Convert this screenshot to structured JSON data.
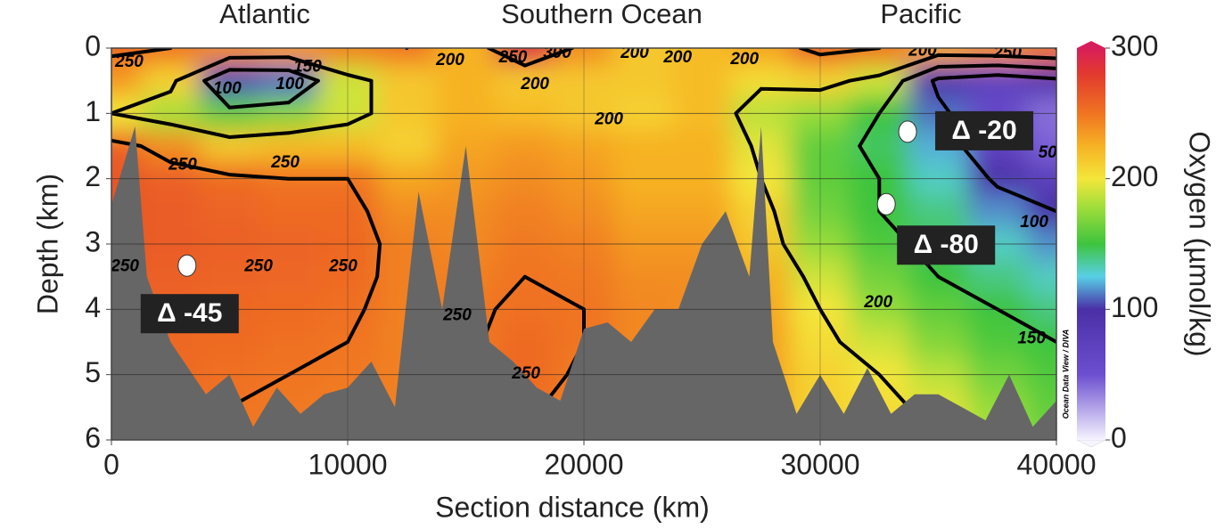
{
  "chart_data": {
    "type": "section",
    "regions": [
      "Atlantic",
      "Southern Ocean",
      "Pacific"
    ],
    "xlabel": "Section distance (km)",
    "ylabel": "Depth (km)",
    "xlim": [
      0,
      40000
    ],
    "xticks": [
      0,
      10000,
      20000,
      30000,
      40000
    ],
    "ylim": [
      0,
      6
    ],
    "yticks": [
      0,
      1,
      2,
      3,
      4,
      5,
      6
    ],
    "y_inverted": true,
    "grid": true,
    "colorbar": {
      "label": "Oxygen (µmol/kg)",
      "lim": [
        0,
        300
      ],
      "ticks": [
        0,
        100,
        200,
        300
      ]
    },
    "colormap": [
      {
        "value": 0,
        "color": "#f6f4ff"
      },
      {
        "value": 50,
        "color": "#6c4fd0"
      },
      {
        "value": 100,
        "color": "#4a2fa6"
      },
      {
        "value": 125,
        "color": "#58cfe6"
      },
      {
        "value": 150,
        "color": "#3ec43e"
      },
      {
        "value": 180,
        "color": "#a6df3a"
      },
      {
        "value": 200,
        "color": "#f4e63a"
      },
      {
        "value": 225,
        "color": "#f6b224"
      },
      {
        "value": 250,
        "color": "#f07422"
      },
      {
        "value": 280,
        "color": "#e23a2e"
      },
      {
        "value": 300,
        "color": "#d81e5a"
      }
    ],
    "field": {
      "x": [
        0,
        2500,
        5000,
        7500,
        10000,
        12500,
        15000,
        17500,
        20000,
        22500,
        25000,
        27500,
        30000,
        32500,
        35000,
        37500,
        40000
      ],
      "depth": [
        0,
        0.5,
        1,
        1.5,
        2,
        2.5,
        3,
        3.5,
        4,
        4.5,
        5,
        5.5,
        6
      ],
      "values": [
        [
          255,
          250,
          240,
          235,
          245,
          250,
          225,
          290,
          240,
          215,
          220,
          230,
          260,
          250,
          230,
          240,
          250
        ],
        [
          235,
          210,
          105,
          110,
          190,
          215,
          225,
          215,
          215,
          215,
          220,
          205,
          210,
          190,
          90,
          70,
          90
        ],
        [
          200,
          180,
          160,
          170,
          190,
          215,
          225,
          220,
          215,
          210,
          220,
          185,
          175,
          150,
          110,
          60,
          40
        ],
        [
          260,
          240,
          215,
          220,
          220,
          210,
          230,
          235,
          230,
          225,
          225,
          195,
          160,
          145,
          120,
          70,
          45
        ],
        [
          265,
          260,
          255,
          250,
          250,
          230,
          235,
          240,
          235,
          225,
          225,
          200,
          160,
          150,
          130,
          95,
          75
        ],
        [
          265,
          262,
          258,
          255,
          255,
          240,
          240,
          245,
          240,
          230,
          230,
          210,
          165,
          150,
          140,
          115,
          100
        ],
        [
          265,
          262,
          260,
          258,
          256,
          245,
          242,
          248,
          245,
          235,
          235,
          215,
          175,
          155,
          145,
          130,
          115
        ],
        [
          262,
          260,
          258,
          257,
          255,
          245,
          245,
          250,
          248,
          240,
          240,
          225,
          190,
          165,
          150,
          140,
          130
        ],
        [
          260,
          258,
          256,
          255,
          252,
          245,
          248,
          252,
          250,
          242,
          240,
          230,
          200,
          175,
          160,
          150,
          140
        ],
        [
          258,
          256,
          255,
          252,
          250,
          245,
          248,
          255,
          250,
          242,
          240,
          232,
          205,
          190,
          170,
          155,
          150
        ],
        [
          256,
          255,
          252,
          250,
          248,
          245,
          248,
          255,
          248,
          240,
          238,
          230,
          210,
          200,
          185,
          165,
          155
        ],
        [
          255,
          254,
          250,
          248,
          246,
          245,
          246,
          252,
          245,
          238,
          236,
          228,
          210,
          205,
          195,
          175,
          160
        ],
        [
          254,
          253,
          250,
          247,
          245,
          244,
          245,
          250,
          244,
          236,
          235,
          226,
          210,
          206,
          198,
          180,
          165
        ]
      ]
    },
    "contour_levels": [
      100,
      150,
      200,
      250
    ],
    "seafloor": {
      "x": [
        0,
        1000,
        1500,
        2500,
        4000,
        5000,
        6000,
        7000,
        8000,
        9000,
        10000,
        11000,
        12000,
        13000,
        14000,
        15000,
        16000,
        17000,
        18000,
        19000,
        20000,
        21000,
        22000,
        23000,
        24000,
        25000,
        26000,
        27000,
        27500,
        28000,
        29000,
        30000,
        31000,
        32000,
        33000,
        34000,
        35000,
        36000,
        37000,
        38000,
        39000,
        40000
      ],
      "depth": [
        2.4,
        1.2,
        3.5,
        4.5,
        5.3,
        5.0,
        5.8,
        5.2,
        5.6,
        5.3,
        5.2,
        4.8,
        5.5,
        2.2,
        4.0,
        1.5,
        4.5,
        4.8,
        5.2,
        5.4,
        4.3,
        4.2,
        4.5,
        4.0,
        4.0,
        3.0,
        2.5,
        3.5,
        1.2,
        4.5,
        5.6,
        5.0,
        5.6,
        4.9,
        5.6,
        5.3,
        5.3,
        5.5,
        5.7,
        5.0,
        5.8,
        5.4
      ]
    },
    "contour_labels": [
      {
        "text": "250",
        "x": 755,
        "depth": 0.22
      },
      {
        "text": "150",
        "x": 8300,
        "depth": 0.29
      },
      {
        "text": "100",
        "x": 7550,
        "depth": 0.56
      },
      {
        "text": "100",
        "x": 4900,
        "depth": 0.63
      },
      {
        "text": "200",
        "x": 14340,
        "depth": 0.19
      },
      {
        "text": "250",
        "x": 17000,
        "depth": 0.15
      },
      {
        "text": "300",
        "x": 18870,
        "depth": 0.08
      },
      {
        "text": "200",
        "x": 17930,
        "depth": 0.56
      },
      {
        "text": "200",
        "x": 22150,
        "depth": 0.08
      },
      {
        "text": "200",
        "x": 23970,
        "depth": 0.15
      },
      {
        "text": "200",
        "x": 26800,
        "depth": 0.18
      },
      {
        "text": "200",
        "x": 21060,
        "depth": 1.1
      },
      {
        "text": "250",
        "x": 3020,
        "depth": 1.79
      },
      {
        "text": "250",
        "x": 7360,
        "depth": 1.76
      },
      {
        "text": "250",
        "x": 6230,
        "depth": 3.35
      },
      {
        "text": "250",
        "x": 9810,
        "depth": 3.35
      },
      {
        "text": "250",
        "x": 570,
        "depth": 3.35
      },
      {
        "text": "250",
        "x": 14640,
        "depth": 4.1
      },
      {
        "text": "250",
        "x": 17550,
        "depth": 4.99
      },
      {
        "text": "200",
        "x": 32460,
        "depth": 3.9
      },
      {
        "text": "150",
        "x": 38950,
        "depth": 4.45
      },
      {
        "text": "100",
        "x": 39060,
        "depth": 2.67
      },
      {
        "text": "50",
        "x": 39630,
        "depth": 1.61
      },
      {
        "text": "200",
        "x": 34340,
        "depth": 0.05
      },
      {
        "text": "250",
        "x": 37930,
        "depth": 0.08
      }
    ],
    "annotations": [
      {
        "text": "Δ -45",
        "x": 3200,
        "depth": 3.33
      },
      {
        "text": "Δ -80",
        "x": 32800,
        "depth": 2.39
      },
      {
        "text": "Δ -20",
        "x": 33700,
        "depth": 1.28
      }
    ],
    "watermark": "Ocean Data View / DIVA"
  }
}
